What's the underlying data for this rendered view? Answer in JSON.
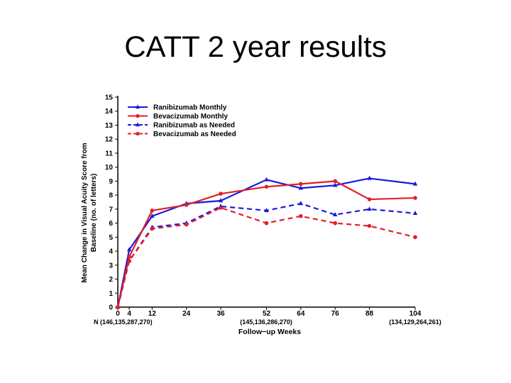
{
  "slide": {
    "title": "CATT 2 year results"
  },
  "chart_data": {
    "type": "line",
    "title": "",
    "xlabel": "Follow−up Weeks",
    "ylabel_line1": "Mean Change in Visual Acuity Score from",
    "ylabel_line2": "Baseline (no. of letters)",
    "x": [
      0,
      4,
      12,
      24,
      36,
      52,
      64,
      76,
      88,
      104
    ],
    "xticks": [
      "0",
      "4",
      "12",
      "24",
      "36",
      "52",
      "64",
      "76",
      "88",
      "104"
    ],
    "xlim": [
      0,
      104
    ],
    "ylim": [
      0,
      15
    ],
    "yticks": [
      "0",
      "1",
      "2",
      "3",
      "4",
      "5",
      "6",
      "7",
      "8",
      "9",
      "10",
      "11",
      "12",
      "13",
      "14",
      "15"
    ],
    "grid": false,
    "legend_position": "top-left",
    "series": [
      {
        "name": "Ranibizumab Monthly",
        "color": "#1a1adc",
        "style": "solid",
        "marker": "triangle",
        "values": [
          0,
          4.1,
          6.5,
          7.4,
          7.6,
          9.1,
          8.5,
          8.7,
          9.2,
          8.8
        ]
      },
      {
        "name": "Bevacizumab Monthly",
        "color": "#e0202a",
        "style": "solid",
        "marker": "circle",
        "values": [
          0,
          3.6,
          6.9,
          7.3,
          8.1,
          8.6,
          8.8,
          9.0,
          7.7,
          7.8
        ]
      },
      {
        "name": "Ranibizumab as Needed",
        "color": "#1a1adc",
        "style": "dashed",
        "marker": "triangle",
        "values": [
          0,
          3.3,
          5.7,
          6.0,
          7.2,
          6.9,
          7.4,
          6.6,
          7.0,
          6.7
        ]
      },
      {
        "name": "Bevacizumab as Needed",
        "color": "#e0202a",
        "style": "dashed",
        "marker": "circle",
        "values": [
          0,
          3.3,
          5.6,
          5.9,
          7.1,
          6.0,
          6.5,
          6.0,
          5.8,
          5.0
        ]
      }
    ],
    "annotations": [
      {
        "text": "N (146,135,287,270)",
        "near": "week 4"
      },
      {
        "text": "(145,136,286,270)",
        "near": "week 52"
      },
      {
        "text": "(134,129,264,261)",
        "near": "week 104"
      }
    ]
  }
}
